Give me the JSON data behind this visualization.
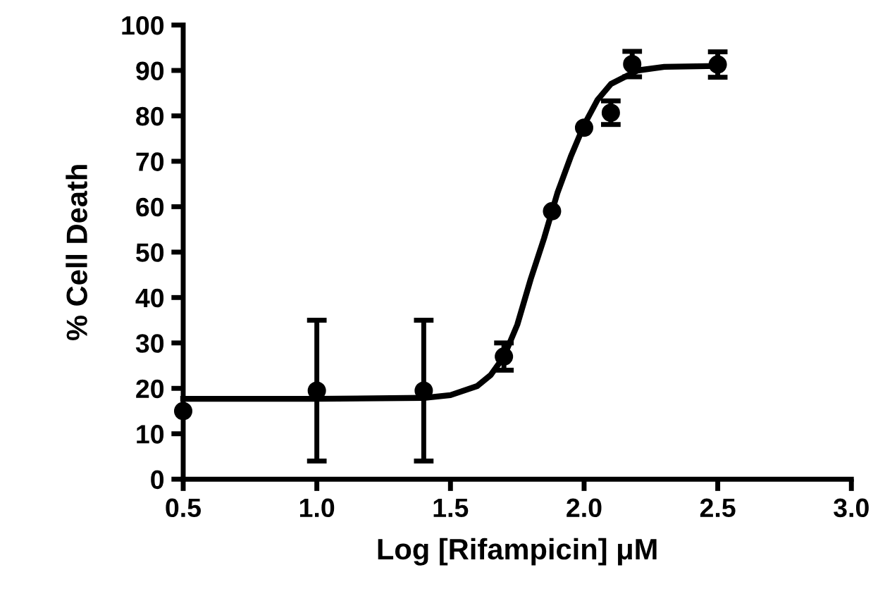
{
  "chart_data": {
    "type": "scatter",
    "xlabel": "Log [Rifampicin] μM",
    "ylabel": "% Cell Death",
    "xlim": [
      0.5,
      3.0
    ],
    "xticks": [
      {
        "value": 0.5,
        "label": "0.5"
      },
      {
        "value": 1.0,
        "label": "1.0"
      },
      {
        "value": 1.5,
        "label": "1.5"
      },
      {
        "value": 2.0,
        "label": "2.0"
      },
      {
        "value": 2.5,
        "label": "2.5"
      },
      {
        "value": 3.0,
        "label": "3.0"
      }
    ],
    "ylim": [
      0,
      100
    ],
    "yticks": [
      0,
      10,
      20,
      30,
      40,
      50,
      60,
      70,
      80,
      90,
      100
    ],
    "grid": false,
    "legend": false,
    "series": [
      {
        "type": "line",
        "color": "#000000",
        "marker": "none",
        "line_style": "solid",
        "x": [
          0.5,
          1.0,
          1.4,
          1.5,
          1.6,
          1.65,
          1.7,
          1.75,
          1.8,
          1.85,
          1.9,
          1.95,
          2.0,
          2.05,
          2.1,
          2.2,
          2.3,
          2.5
        ],
        "values": [
          17.7,
          17.7,
          17.9,
          18.5,
          20.5,
          22.9,
          27.0,
          34,
          44,
          53,
          63,
          71,
          78,
          83.5,
          87,
          90,
          90.8,
          91.0
        ]
      },
      {
        "color": "#000000",
        "marker": "circle",
        "x": [
          0.5,
          1.0,
          1.4,
          1.7,
          1.88,
          2.0,
          2.1,
          2.18,
          2.5
        ],
        "values": [
          15,
          19.5,
          19.5,
          27,
          59,
          77.4,
          80.7,
          91.4,
          91.3
        ],
        "errors": [
          null,
          15.5,
          15.5,
          3,
          null,
          null,
          2.6,
          2.8,
          2.8
        ]
      }
    ]
  }
}
